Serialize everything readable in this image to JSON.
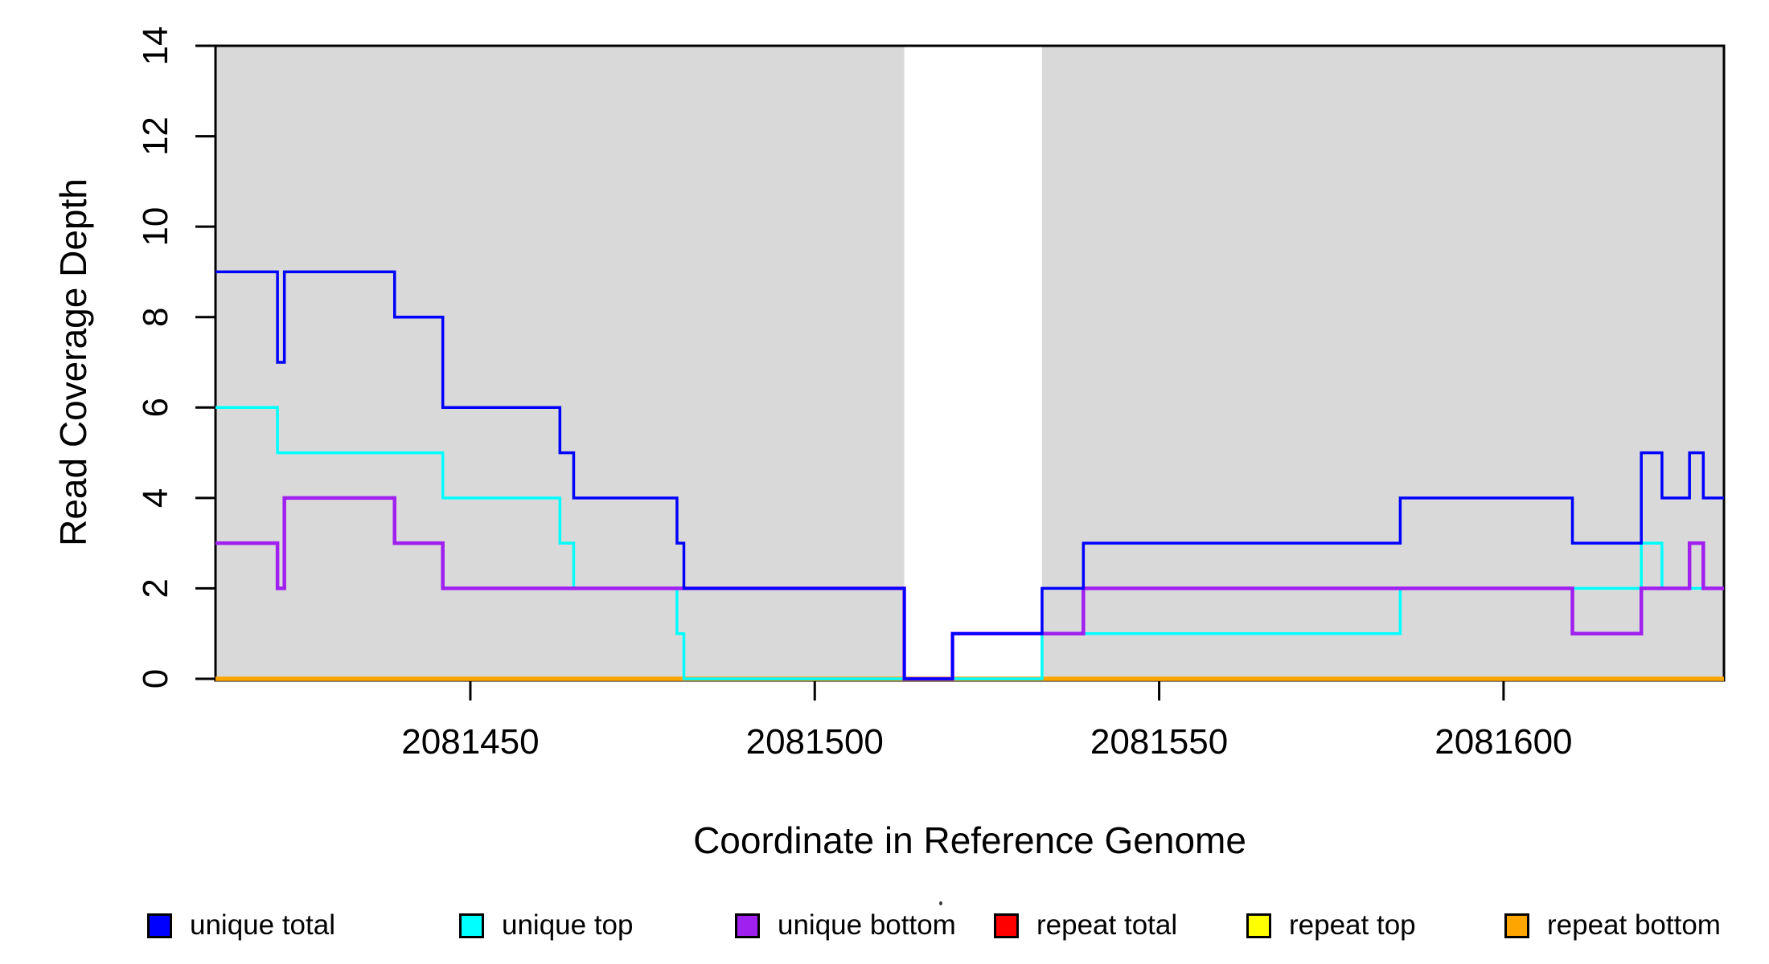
{
  "chart_data": {
    "type": "line",
    "subtype": "step",
    "title": "",
    "xlabel": "Coordinate in Reference Genome",
    "ylabel": "Read Coverage Depth",
    "xlim": [
      2081413,
      2081632
    ],
    "ylim": [
      0,
      14
    ],
    "x_ticks": [
      2081450,
      2081500,
      2081550,
      2081600
    ],
    "y_ticks": [
      0,
      2,
      4,
      6,
      8,
      10,
      12,
      14
    ],
    "grid": false,
    "legend_position": "bottom",
    "background_color": "#FFFFFF",
    "shaded_region_color": "#D9D9D9",
    "shaded_regions": [
      {
        "x0": 2081413,
        "x1": 2081513
      },
      {
        "x0": 2081533,
        "x1": 2081632
      }
    ],
    "series": [
      {
        "name": "repeat total",
        "color": "#FF0000",
        "width": 3,
        "steps": [
          [
            2081413,
            0
          ]
        ]
      },
      {
        "name": "repeat top",
        "color": "#FFFF00",
        "width": 3,
        "steps": [
          [
            2081413,
            0
          ]
        ]
      },
      {
        "name": "repeat bottom",
        "color": "#FFA500",
        "width": 5.5,
        "steps": [
          [
            2081413,
            0
          ]
        ]
      },
      {
        "name": "unique top",
        "color": "#00FFFF",
        "width": 3.5,
        "steps": [
          [
            2081413,
            6
          ],
          [
            2081422,
            5
          ],
          [
            2081446,
            4
          ],
          [
            2081463,
            3
          ],
          [
            2081465,
            2
          ],
          [
            2081480,
            1
          ],
          [
            2081481,
            0
          ],
          [
            2081533,
            1
          ],
          [
            2081585,
            2
          ],
          [
            2081620,
            3
          ],
          [
            2081623,
            2
          ]
        ]
      },
      {
        "name": "unique bottom",
        "color": "#A020F0",
        "width": 4.5,
        "steps": [
          [
            2081413,
            3
          ],
          [
            2081422,
            2
          ],
          [
            2081423,
            4
          ],
          [
            2081439,
            3
          ],
          [
            2081446,
            2
          ],
          [
            2081513,
            0
          ],
          [
            2081520,
            1
          ],
          [
            2081539,
            2
          ],
          [
            2081610,
            1
          ],
          [
            2081620,
            2
          ],
          [
            2081627,
            3
          ],
          [
            2081629,
            2
          ]
        ]
      },
      {
        "name": "unique total",
        "color": "#0000FF",
        "width": 3.5,
        "steps": [
          [
            2081413,
            9
          ],
          [
            2081422,
            7
          ],
          [
            2081423,
            9
          ],
          [
            2081439,
            8
          ],
          [
            2081446,
            6
          ],
          [
            2081463,
            5
          ],
          [
            2081465,
            4
          ],
          [
            2081480,
            3
          ],
          [
            2081481,
            2
          ],
          [
            2081513,
            0
          ],
          [
            2081520,
            1
          ],
          [
            2081533,
            2
          ],
          [
            2081539,
            3
          ],
          [
            2081585,
            4
          ],
          [
            2081610,
            3
          ],
          [
            2081620,
            5
          ],
          [
            2081623,
            4
          ],
          [
            2081627,
            5
          ],
          [
            2081629,
            4
          ]
        ]
      }
    ],
    "legend": [
      {
        "label": "unique total",
        "color": "#0000FF"
      },
      {
        "label": "unique top",
        "color": "#00FFFF"
      },
      {
        "label": "unique bottom",
        "color": "#A020F0"
      },
      {
        "label": "repeat total",
        "color": "#FF0000"
      },
      {
        "label": "repeat top",
        "color": "#FFFF00"
      },
      {
        "label": "repeat bottom",
        "color": "#FFA500"
      }
    ]
  }
}
